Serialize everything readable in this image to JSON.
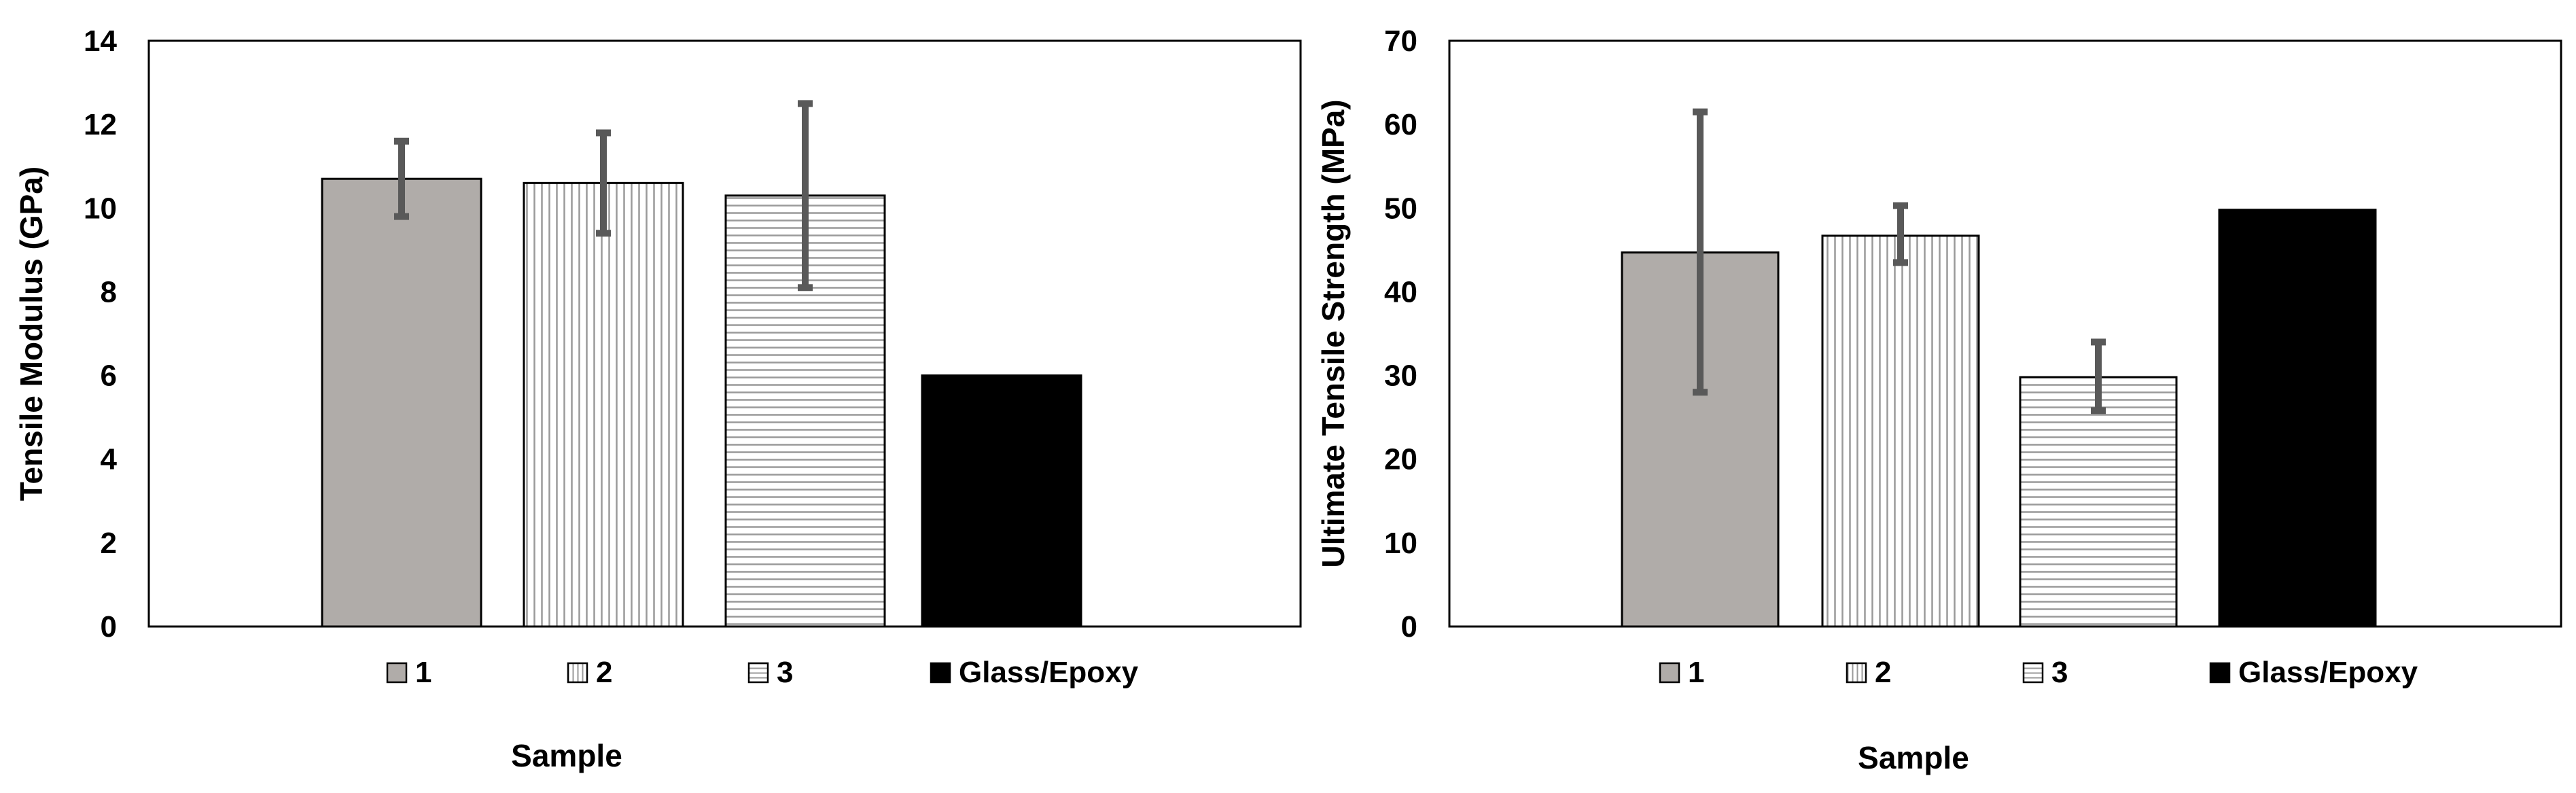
{
  "chart_data": [
    {
      "type": "bar",
      "title": "",
      "xlabel": "Sample",
      "ylabel": "Tensile Modulus (GPa)",
      "ylim": [
        0,
        14
      ],
      "yticks": [
        0,
        2,
        4,
        6,
        8,
        10,
        12,
        14
      ],
      "grid": false,
      "legend_position": "bottom",
      "categories": [
        "1",
        "2",
        "3",
        "Glass/Epoxy"
      ],
      "values": [
        10.7,
        10.6,
        10.3,
        6.0
      ],
      "errors_upper": [
        11.6,
        11.8,
        12.5,
        null
      ],
      "errors_lower": [
        9.8,
        9.4,
        8.1,
        null
      ],
      "series": [
        {
          "name": "1",
          "value": 10.7,
          "pattern": "solid-gray",
          "color": "#b0aca9"
        },
        {
          "name": "2",
          "value": 10.6,
          "pattern": "vertical-lines",
          "color": "#ffffff"
        },
        {
          "name": "3",
          "value": 10.3,
          "pattern": "horizontal-lines",
          "color": "#ffffff"
        },
        {
          "name": "Glass/Epoxy",
          "value": 6.0,
          "pattern": "solid-black",
          "color": "#000000"
        }
      ]
    },
    {
      "type": "bar",
      "title": "",
      "xlabel": "Sample",
      "ylabel": "Ultimate Tensile Strength (MPa)",
      "ylim": [
        0,
        70
      ],
      "yticks": [
        0,
        10,
        20,
        30,
        40,
        50,
        60,
        70
      ],
      "grid": false,
      "legend_position": "bottom",
      "categories": [
        "1",
        "2",
        "3",
        "Glass/Epoxy"
      ],
      "values": [
        44.7,
        46.7,
        29.8,
        49.8
      ],
      "errors_upper": [
        61.5,
        50.3,
        34.0,
        null
      ],
      "errors_lower": [
        28.0,
        43.5,
        25.8,
        null
      ],
      "series": [
        {
          "name": "1",
          "value": 44.7,
          "pattern": "solid-gray",
          "color": "#b0aca9"
        },
        {
          "name": "2",
          "value": 46.7,
          "pattern": "vertical-lines",
          "color": "#ffffff"
        },
        {
          "name": "3",
          "value": 29.8,
          "pattern": "horizontal-lines",
          "color": "#ffffff"
        },
        {
          "name": "Glass/Epoxy",
          "value": 49.8,
          "pattern": "solid-black",
          "color": "#000000"
        }
      ]
    }
  ],
  "colors": {
    "axis": "#000000",
    "error_bar": "#595959",
    "pattern_line": "#9a9a9a"
  }
}
